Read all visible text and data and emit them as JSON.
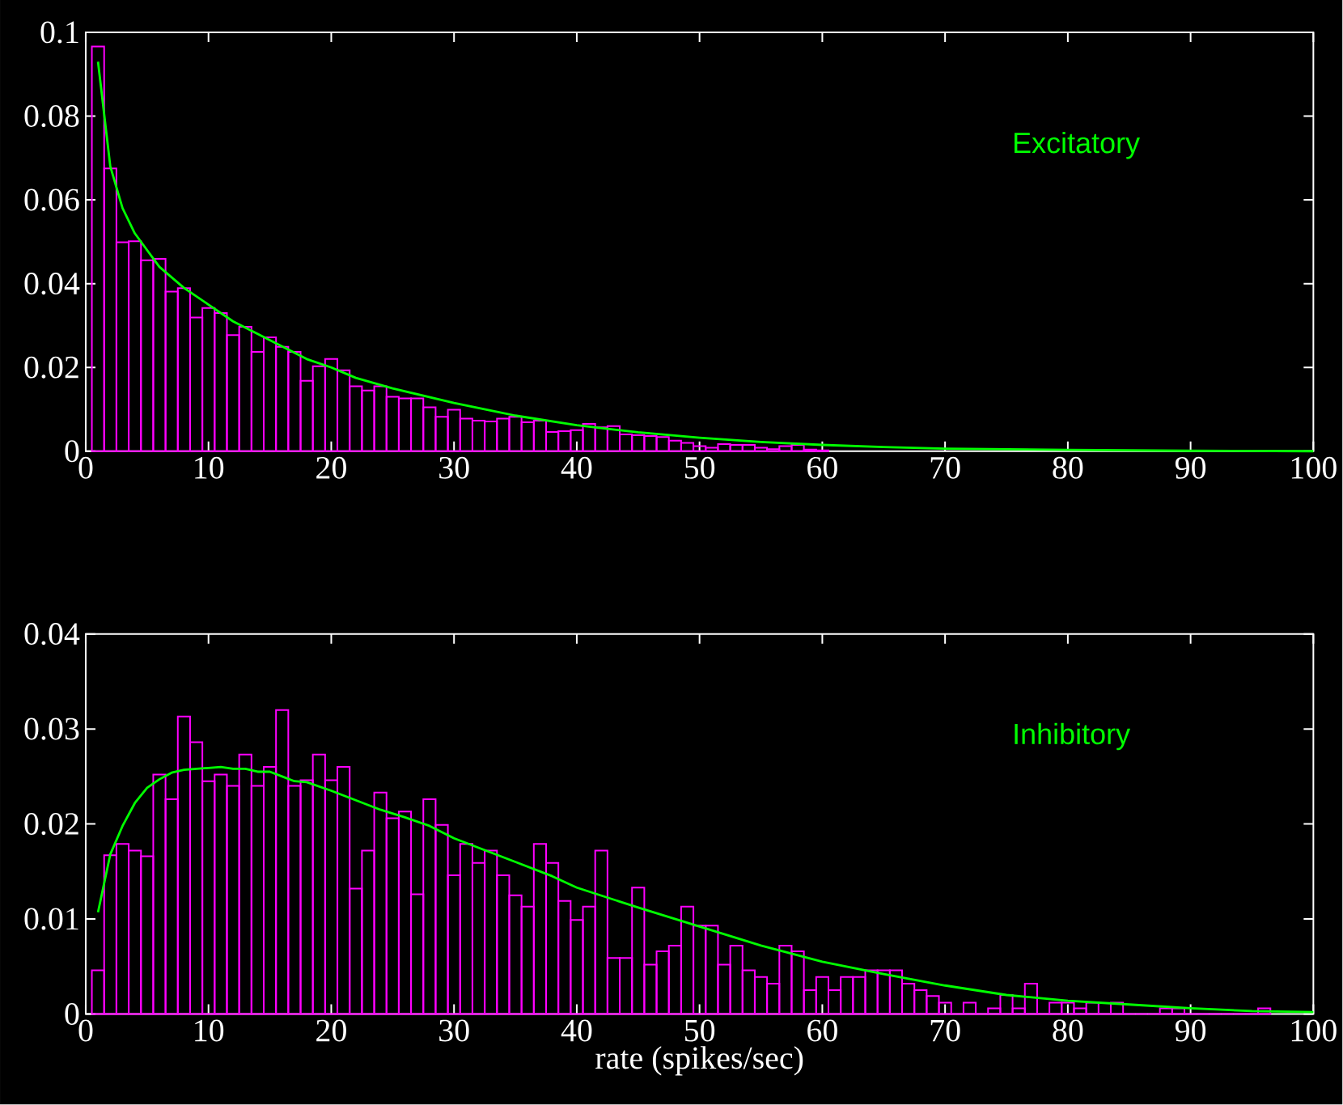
{
  "chart_data": [
    {
      "type": "histogram",
      "xlim": [
        0,
        100
      ],
      "ylim": [
        0,
        0.1
      ],
      "xticks": [
        0,
        10,
        20,
        30,
        40,
        50,
        60,
        70,
        80,
        90,
        100
      ],
      "yticks": [
        0,
        0.02,
        0.04,
        0.06,
        0.08,
        0.1
      ],
      "annotations": [
        "Excitatory"
      ],
      "bins": [
        0.5,
        1.5,
        2.5,
        3.5,
        4.5,
        5.5,
        6.5,
        7.5,
        8.5,
        9.5,
        10.5,
        11.5,
        12.5,
        13.5,
        14.5,
        15.5,
        16.5,
        17.5,
        18.5,
        19.5,
        20.5,
        21.5,
        22.5,
        23.5,
        24.5,
        25.5,
        26.5,
        27.5,
        28.5,
        29.5,
        30.5,
        31.5,
        32.5,
        33.5,
        34.5,
        35.5,
        36.5,
        37.5,
        38.5,
        39.5,
        40.5,
        41.5,
        42.5,
        43.5,
        44.5,
        45.5,
        46.5,
        47.5,
        48.5,
        49.5,
        50.5,
        51.5,
        52.5,
        53.5,
        54.5,
        55.5,
        56.5,
        57.5,
        58.5,
        59.5,
        60.5
      ],
      "series": [
        {
          "color": "#ff00ff",
          "values": [
            0.0966,
            0.0675,
            0.0499,
            0.0501,
            0.0456,
            0.0459,
            0.0381,
            0.0389,
            0.0319,
            0.0342,
            0.033,
            0.0277,
            0.0297,
            0.0237,
            0.0272,
            0.0249,
            0.0237,
            0.0168,
            0.0203,
            0.022,
            0.0193,
            0.0155,
            0.0145,
            0.0155,
            0.013,
            0.0126,
            0.0126,
            0.0105,
            0.0082,
            0.0099,
            0.0078,
            0.0073,
            0.0071,
            0.0078,
            0.0082,
            0.0069,
            0.0073,
            0.0046,
            0.0048,
            0.005,
            0.0065,
            0.0057,
            0.006,
            0.004,
            0.0038,
            0.0036,
            0.0034,
            0.0025,
            0.002,
            0.0012,
            0.0008,
            0.0017,
            0.0015,
            0.0015,
            0.0008,
            0.0005,
            0.0012,
            0.0015,
            0.0004,
            0.0002
          ]
        },
        {
          "type": "line",
          "color": "#00ff00",
          "x": [
            1,
            2,
            3,
            4,
            5,
            6,
            8,
            10,
            12,
            14,
            16,
            18,
            20,
            22,
            25,
            30,
            35,
            40,
            45,
            50,
            55,
            60,
            65,
            70,
            80,
            90,
            100
          ],
          "values": [
            0.093,
            0.068,
            0.058,
            0.052,
            0.048,
            0.044,
            0.039,
            0.035,
            0.031,
            0.028,
            0.025,
            0.022,
            0.02,
            0.0175,
            0.015,
            0.0115,
            0.0085,
            0.0062,
            0.0045,
            0.0032,
            0.0022,
            0.0015,
            0.001,
            0.0006,
            0.0003,
            0.0001,
            0
          ]
        }
      ]
    },
    {
      "type": "histogram",
      "xlim": [
        0,
        100
      ],
      "ylim": [
        0,
        0.04
      ],
      "xticks": [
        0,
        10,
        20,
        30,
        40,
        50,
        60,
        70,
        80,
        90,
        100
      ],
      "yticks": [
        0,
        0.01,
        0.02,
        0.03,
        0.04
      ],
      "xlabel": "rate (spikes/sec)",
      "annotations": [
        "Inhibitory"
      ],
      "bins": [
        0.5,
        1.5,
        2.5,
        3.5,
        4.5,
        5.5,
        6.5,
        7.5,
        8.5,
        9.5,
        10.5,
        11.5,
        12.5,
        13.5,
        14.5,
        15.5,
        16.5,
        17.5,
        18.5,
        19.5,
        20.5,
        21.5,
        22.5,
        23.5,
        24.5,
        25.5,
        26.5,
        27.5,
        28.5,
        29.5,
        30.5,
        31.5,
        32.5,
        33.5,
        34.5,
        35.5,
        36.5,
        37.5,
        38.5,
        39.5,
        40.5,
        41.5,
        42.5,
        43.5,
        44.5,
        45.5,
        46.5,
        47.5,
        48.5,
        49.5,
        50.5,
        51.5,
        52.5,
        53.5,
        54.5,
        55.5,
        56.5,
        57.5,
        58.5,
        59.5,
        60.5,
        61.5,
        62.5,
        63.5,
        64.5,
        65.5,
        66.5,
        67.5,
        68.5,
        69.5,
        70.5,
        71.5,
        72.5,
        73.5,
        74.5,
        75.5,
        76.5,
        77.5,
        78.5,
        79.5,
        80.5,
        81.5,
        82.5,
        83.5,
        84.5,
        85.5,
        86.5,
        87.5,
        88.5,
        89.5,
        90.5,
        91.5,
        92.5,
        93.5,
        94.5,
        95.5,
        96.5
      ],
      "series": [
        {
          "color": "#ff00ff",
          "values": [
            0.0046,
            0.0167,
            0.0179,
            0.0172,
            0.0166,
            0.0252,
            0.0226,
            0.0313,
            0.0286,
            0.0245,
            0.0252,
            0.024,
            0.0273,
            0.024,
            0.026,
            0.032,
            0.024,
            0.0246,
            0.0273,
            0.0246,
            0.026,
            0.0132,
            0.0172,
            0.0233,
            0.0206,
            0.0213,
            0.0126,
            0.0226,
            0.0199,
            0.0146,
            0.0179,
            0.0159,
            0.0172,
            0.0146,
            0.0125,
            0.0113,
            0.0179,
            0.0159,
            0.0119,
            0.0099,
            0.0113,
            0.0172,
            0.0059,
            0.0059,
            0.0133,
            0.0052,
            0.0066,
            0.0072,
            0.0113,
            0.0093,
            0.0093,
            0.0052,
            0.0072,
            0.0046,
            0.0039,
            0.0032,
            0.0072,
            0.0066,
            0.0025,
            0.0039,
            0.0025,
            0.0039,
            0.0039,
            0.0046,
            0.0046,
            0.0046,
            0.0032,
            0.0025,
            0.0019,
            0.0012,
            0,
            0.0012,
            0,
            0.0006,
            0.002,
            0.0006,
            0.0032,
            0,
            0.0012,
            0.0012,
            0.0006,
            0.0012,
            0,
            0.0012,
            0,
            0,
            0,
            0.0006,
            0.0006,
            0,
            0,
            0,
            0,
            0,
            0,
            0.0006
          ]
        },
        {
          "type": "line",
          "color": "#00ff00",
          "x": [
            1,
            2,
            3,
            4,
            5,
            6,
            7,
            8,
            10,
            11,
            12,
            13,
            14,
            15,
            16,
            17,
            18,
            20,
            22,
            24,
            26,
            28,
            30,
            32,
            35,
            38,
            40,
            45,
            50,
            55,
            60,
            65,
            70,
            75,
            80,
            85,
            90,
            95,
            100
          ],
          "values": [
            0.0107,
            0.0168,
            0.0198,
            0.0222,
            0.0238,
            0.0247,
            0.0254,
            0.0257,
            0.0259,
            0.026,
            0.0258,
            0.0258,
            0.0255,
            0.0255,
            0.025,
            0.0245,
            0.0244,
            0.0235,
            0.0225,
            0.0215,
            0.0207,
            0.0198,
            0.0185,
            0.0175,
            0.016,
            0.0145,
            0.0133,
            0.0112,
            0.0092,
            0.0072,
            0.0055,
            0.0042,
            0.003,
            0.002,
            0.0014,
            0.001,
            0.0006,
            0.0003,
            0.0002
          ]
        }
      ]
    }
  ]
}
